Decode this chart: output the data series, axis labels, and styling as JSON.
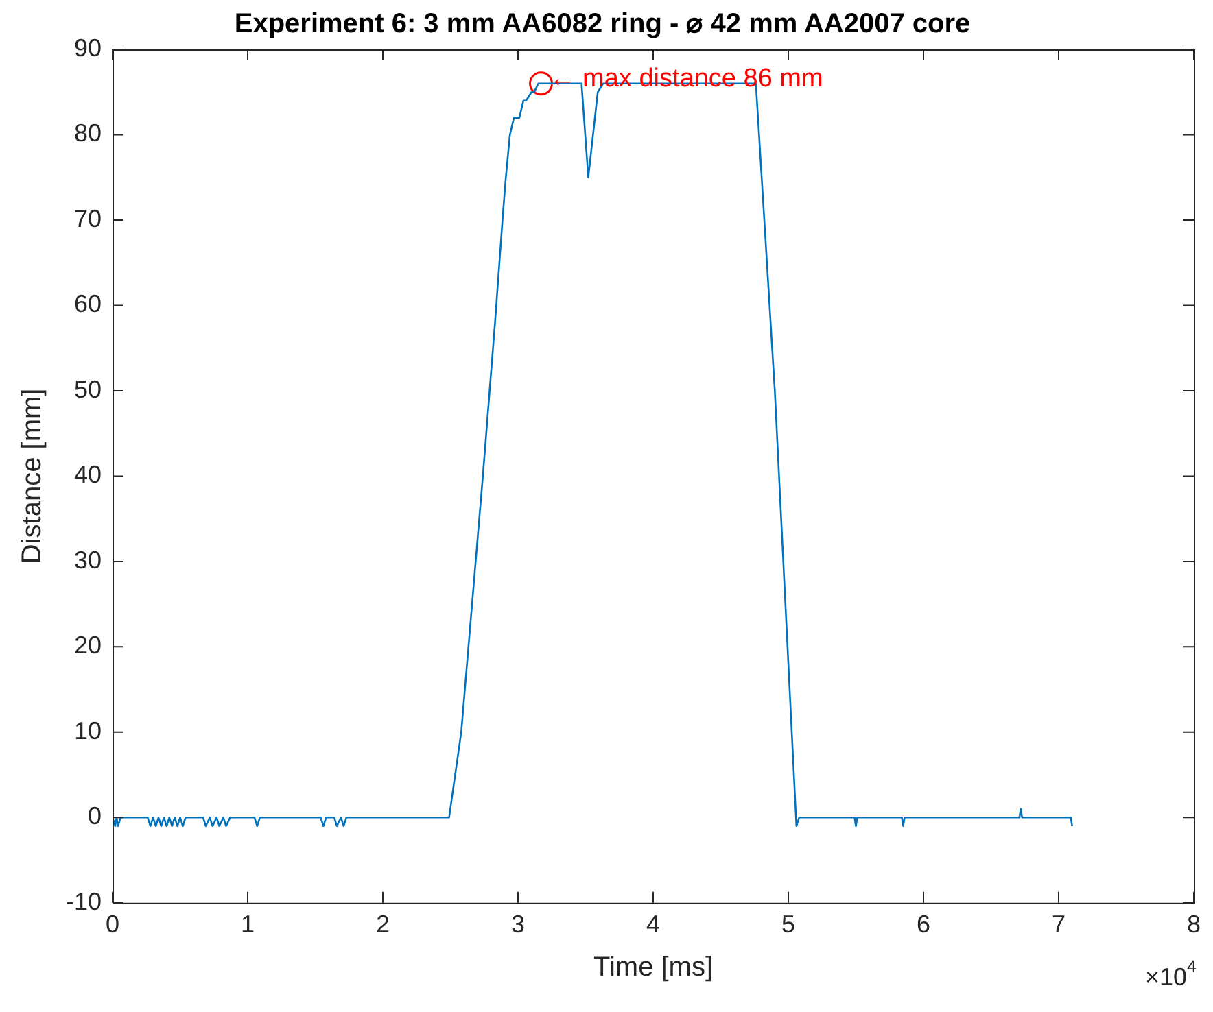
{
  "chart_data": {
    "type": "line",
    "title": "Experiment 6: 3 mm AA6082 ring - ⌀ 42 mm AA2007 core",
    "xlabel": "Time [ms]",
    "ylabel": "Distance [mm]",
    "xlim": [
      0,
      8
    ],
    "xticks": [
      0,
      1,
      2,
      3,
      4,
      5,
      6,
      7,
      8
    ],
    "ylim": [
      -10,
      90
    ],
    "yticks": [
      -10,
      0,
      10,
      20,
      30,
      40,
      50,
      60,
      70,
      80,
      90
    ],
    "grid": false,
    "legend": false,
    "annotations": [
      "×10$^{4}$",
      {
        "text": "← max distance 86 mm",
        "x": 3.17,
        "y": 86
      }
    ],
    "series": [
      {
        "color": "#0072bd",
        "marker": "none",
        "line_style": "solid",
        "x": [
          0,
          0.02,
          0.03,
          0.04,
          0.06,
          0.07,
          0.26,
          0.28,
          0.3,
          0.32,
          0.34,
          0.36,
          0.38,
          0.4,
          0.42,
          0.44,
          0.46,
          0.48,
          0.5,
          0.52,
          0.54,
          0.56,
          0.67,
          0.69,
          0.72,
          0.74,
          0.77,
          0.79,
          0.82,
          0.84,
          0.87,
          0.89,
          1.05,
          1.07,
          1.09,
          1.54,
          1.56,
          1.58,
          1.64,
          1.66,
          1.69,
          1.71,
          1.73,
          2.49,
          2.58,
          2.74,
          2.83,
          2.89,
          2.91,
          2.94,
          2.97,
          3.01,
          3.04,
          3.06,
          3.1,
          3.12,
          3.15,
          3.18,
          3.47,
          3.52,
          3.59,
          3.63,
          4.76,
          4.9,
          5.06,
          5.08,
          5.1,
          5.49,
          5.5,
          5.51,
          5.84,
          5.85,
          5.86,
          6.71,
          6.72,
          6.73,
          7.09,
          7.1
        ],
        "values": [
          0,
          -1,
          0,
          -1,
          0,
          0,
          0,
          -1,
          0,
          -1,
          0,
          -1,
          0,
          -1,
          0,
          -1,
          0,
          -1,
          0,
          -1,
          0,
          0,
          0,
          -1,
          0,
          -1,
          0,
          -1,
          0,
          -1,
          0,
          0,
          0,
          -1,
          0,
          0,
          -1,
          0,
          0,
          -1,
          0,
          -1,
          0,
          0,
          10,
          40,
          58,
          71,
          75,
          80,
          82,
          82,
          84,
          84,
          85,
          85,
          86,
          86,
          86,
          75,
          85,
          86,
          86,
          50,
          -1,
          0,
          0,
          0,
          -1,
          0,
          0,
          -1,
          0,
          0,
          1,
          0,
          0,
          -1
        ]
      },
      {
        "type": "scatter",
        "color": "#ff0000",
        "marker": "circle",
        "x": [
          3.17
        ],
        "values": [
          86
        ]
      }
    ]
  }
}
